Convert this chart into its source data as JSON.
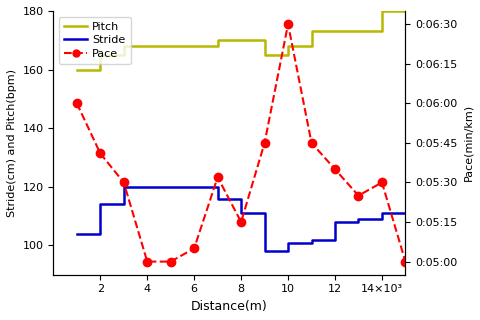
{
  "xlabel": "Distance(m)",
  "ylabel_left": "Stride(cm) and Pitch(bpm)",
  "ylabel_right": "Pace(min/km)",
  "ylim_left": [
    90,
    180
  ],
  "ylim_right": [
    295,
    395
  ],
  "xlim": [
    0,
    15000
  ],
  "pitch_x_step": [
    1000,
    2000,
    2000,
    3000,
    3000,
    7000,
    7000,
    9000,
    9000,
    10000,
    10000,
    11000,
    11000,
    13000,
    13000,
    14000,
    14000,
    15000
  ],
  "pitch_y_step": [
    160,
    160,
    165,
    165,
    168,
    168,
    170,
    170,
    165,
    165,
    168,
    168,
    173,
    173,
    173,
    173,
    180,
    180
  ],
  "stride_x_step": [
    1000,
    2000,
    2000,
    3000,
    3000,
    5000,
    5000,
    7000,
    7000,
    8000,
    8000,
    9000,
    9000,
    10000,
    10000,
    11000,
    11000,
    12000,
    12000,
    13000,
    13000,
    14000,
    14000,
    15000
  ],
  "stride_y_step": [
    104,
    104,
    114,
    114,
    120,
    120,
    120,
    120,
    116,
    116,
    111,
    111,
    98,
    98,
    101,
    101,
    102,
    102,
    108,
    108,
    109,
    109,
    111,
    111
  ],
  "pace_x": [
    1000,
    2000,
    3000,
    4000,
    5000,
    6000,
    7000,
    8000,
    9000,
    10000,
    11000,
    12000,
    13000,
    14000,
    15000
  ],
  "pace_sec": [
    360,
    341,
    330,
    300,
    300,
    305,
    332,
    315,
    345,
    390,
    345,
    335,
    325,
    330,
    300
  ],
  "pitch_color": "#b8b800",
  "stride_color": "#0000cc",
  "pace_color": "#ff0000",
  "background_color": "#ffffff",
  "xtick_vals": [
    2000,
    4000,
    6000,
    8000,
    10000,
    12000,
    14000
  ],
  "xtick_labels": [
    "2",
    "4",
    "6",
    "8",
    "10",
    "12",
    "14×10³"
  ],
  "ytick_left": [
    100,
    120,
    140,
    160,
    180
  ],
  "ytick_right_sec": [
    300,
    315,
    330,
    345,
    360,
    375,
    390
  ],
  "ytick_right_labels": [
    "0:05:00",
    "0:05:15",
    "0:05:30",
    "0:05:45",
    "0:06:00",
    "0:06:15",
    "0:06:30"
  ]
}
